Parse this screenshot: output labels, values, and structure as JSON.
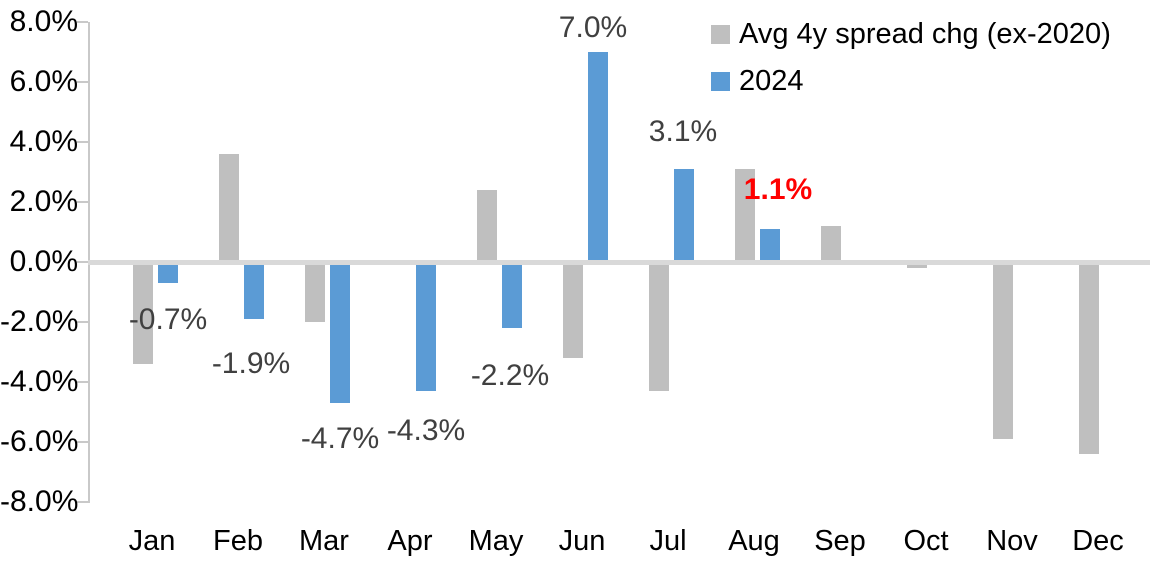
{
  "chart_data": {
    "type": "bar",
    "title": "",
    "xlabel": "",
    "ylabel": "",
    "categories": [
      "Jan",
      "Feb",
      "Mar",
      "Apr",
      "May",
      "Jun",
      "Jul",
      "Aug",
      "Sep",
      "Oct",
      "Nov",
      "Dec"
    ],
    "series": [
      {
        "name": "Avg 4y spread chg (ex-2020)",
        "color": "#bfbfbf",
        "values": [
          -3.4,
          3.6,
          -2.0,
          0.0,
          2.4,
          -3.2,
          -4.3,
          3.1,
          1.2,
          -0.2,
          -5.9,
          -6.4
        ]
      },
      {
        "name": "2024",
        "color": "#5b9bd5",
        "values": [
          -0.7,
          -1.9,
          -4.7,
          -4.3,
          -2.2,
          7.0,
          3.1,
          1.1,
          null,
          null,
          null,
          null
        ]
      }
    ],
    "data_labels": [
      {
        "month": "Jan",
        "series": "2024",
        "text": "-0.7%",
        "color": "#404040",
        "bold": false
      },
      {
        "month": "Feb",
        "series": "2024",
        "text": "-1.9%",
        "color": "#404040",
        "bold": false
      },
      {
        "month": "Mar",
        "series": "2024",
        "text": "-4.7%",
        "color": "#404040",
        "bold": false
      },
      {
        "month": "Apr",
        "series": "2024",
        "text": "-4.3%",
        "color": "#404040",
        "bold": false
      },
      {
        "month": "May",
        "series": "2024",
        "text": "-2.2%",
        "color": "#404040",
        "bold": false
      },
      {
        "month": "Jun",
        "series": "2024",
        "text": "7.0%",
        "color": "#404040",
        "bold": false
      },
      {
        "month": "Jul",
        "series": "2024",
        "text": "3.1%",
        "color": "#404040",
        "bold": false
      },
      {
        "month": "Aug",
        "series": "2024",
        "text": "1.1%",
        "color": "#ff0000",
        "bold": true
      }
    ],
    "y_axis": {
      "unit": "%",
      "min": -8,
      "max": 8,
      "step": 2,
      "ticks": [
        "8.0%",
        "6.0%",
        "4.0%",
        "2.0%",
        "0.0%",
        "-2.0%",
        "-4.0%",
        "-6.0%",
        "-8.0%"
      ],
      "tick_values": [
        8,
        6,
        4,
        2,
        0,
        -2,
        -4,
        -6,
        -8
      ]
    },
    "legend_position": "top-right",
    "grid": false,
    "colors": {
      "gray_series": "#bfbfbf",
      "blue_series": "#5b9bd5",
      "data_label": "#404040",
      "emphasis_label": "#ff0000",
      "zero_line": "#d9d9d9",
      "axis_line": "#c9c9c9",
      "axis_text": "#000000"
    }
  }
}
